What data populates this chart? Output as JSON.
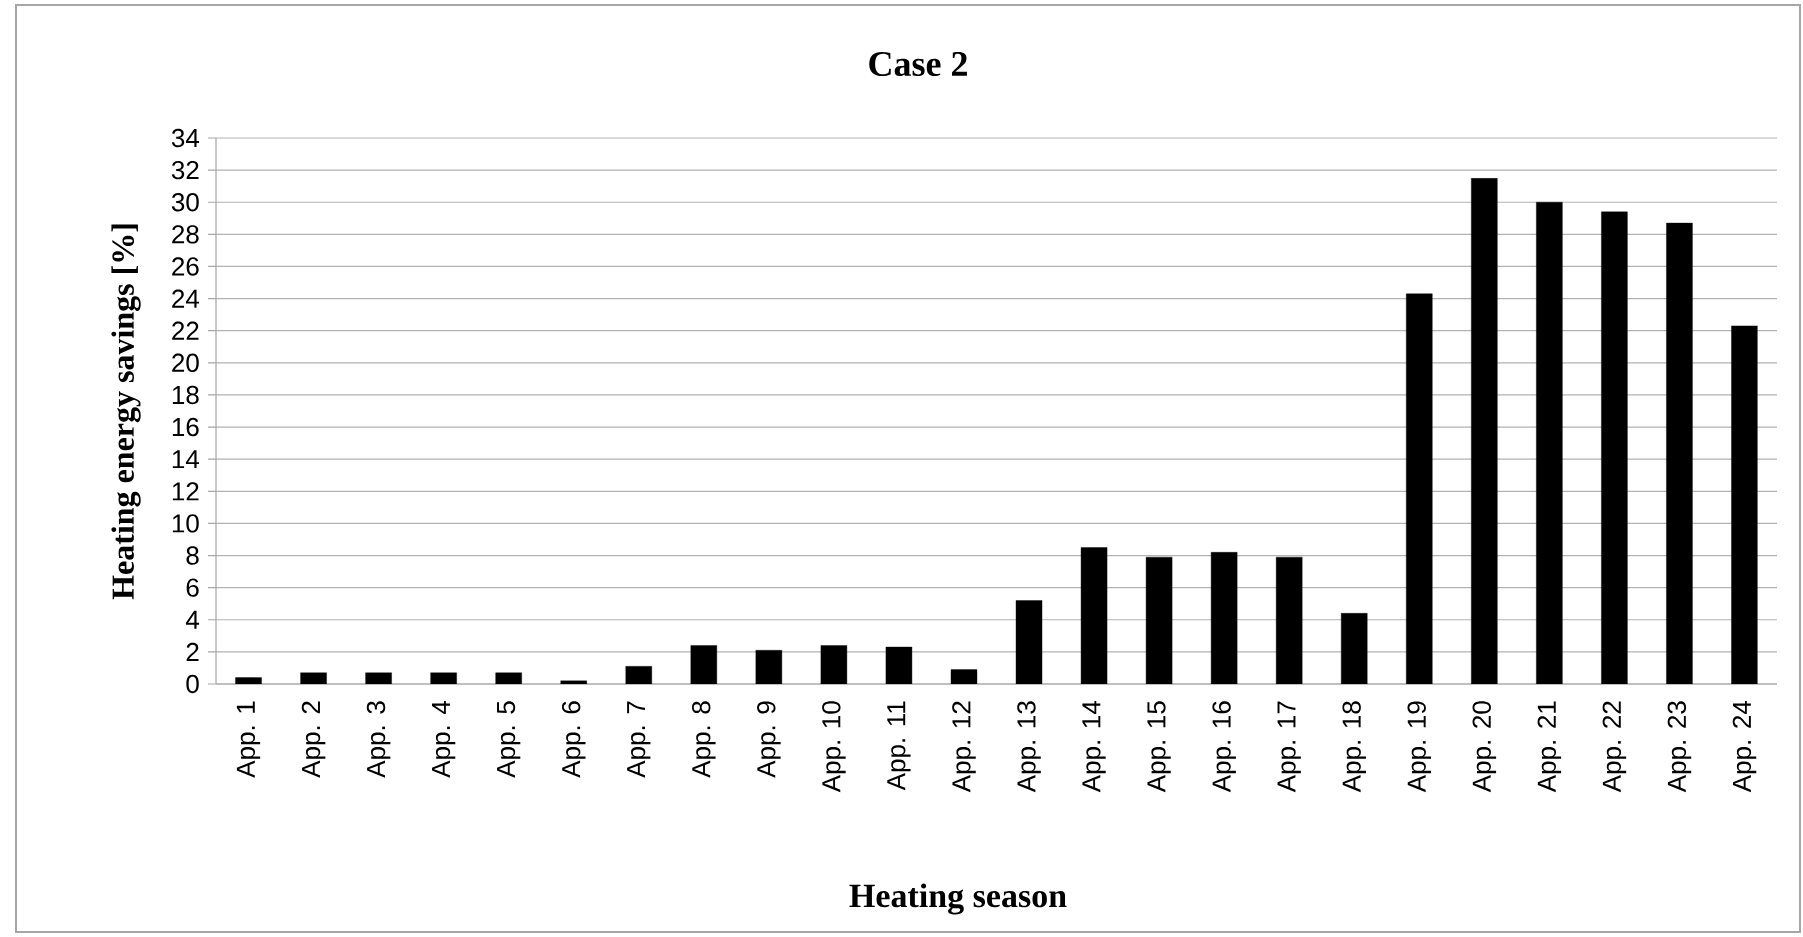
{
  "chart_data": {
    "type": "bar",
    "title": "Case 2",
    "xlabel": "Heating season",
    "ylabel": "Heating energy savings [%]",
    "categories": [
      "App. 1",
      "App. 2",
      "App. 3",
      "App. 4",
      "App. 5",
      "App. 6",
      "App. 7",
      "App. 8",
      "App. 9",
      "App. 10",
      "App. 11",
      "App. 12",
      "App. 13",
      "App. 14",
      "App. 15",
      "App. 16",
      "App. 17",
      "App. 18",
      "App. 19",
      "App. 20",
      "App. 21",
      "App. 22",
      "App. 23",
      "App. 24"
    ],
    "values": [
      0.4,
      0.7,
      0.7,
      0.7,
      0.7,
      0.2,
      1.1,
      2.4,
      2.1,
      2.4,
      2.3,
      0.9,
      5.2,
      8.5,
      7.9,
      8.2,
      7.9,
      4.4,
      24.3,
      31.5,
      30.0,
      29.4,
      28.7,
      22.3
    ],
    "color": "#000000",
    "ylim": [
      0,
      34
    ],
    "yticks": [
      0,
      2,
      4,
      6,
      8,
      10,
      12,
      14,
      16,
      18,
      20,
      22,
      24,
      26,
      28,
      30,
      32,
      34
    ],
    "grid": "y"
  }
}
